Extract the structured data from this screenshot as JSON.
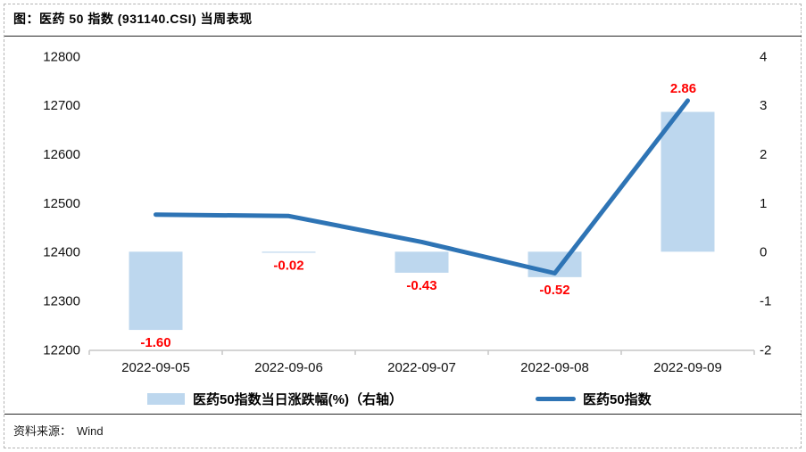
{
  "header": {
    "title": "图：医药 50 指数  (931140.CSI)  当周表现"
  },
  "legend": [
    {
      "type": "bar",
      "label": "医药50指数当日涨跌幅(%)（右轴）"
    },
    {
      "type": "line",
      "label": "医药50指数"
    }
  ],
  "source": {
    "label": "资料来源：",
    "value": "Wind"
  },
  "colors": {
    "bar_fill": "#BDD7EE",
    "line_stroke": "#2E74B5",
    "data_label": "#FF0000",
    "axis_line": "#C6C6C6",
    "axis_text": "#111111",
    "divider": "#262626"
  },
  "chart_data": {
    "type": "combo-bar-line",
    "categories": [
      "2022-09-05",
      "2022-09-06",
      "2022-09-07",
      "2022-09-08",
      "2022-09-09"
    ],
    "series": [
      {
        "name": "医药50指数当日涨跌幅(%)（右轴）",
        "type": "bar",
        "axis": "right",
        "values": [
          -1.6,
          -0.02,
          -0.43,
          -0.52,
          2.86
        ],
        "labels": [
          "-1.60",
          "-0.02",
          "-0.43",
          "-0.52",
          "2.86"
        ]
      },
      {
        "name": "医药50指数",
        "type": "line",
        "axis": "left",
        "values": [
          12476,
          12473,
          12420,
          12356,
          12709
        ]
      }
    ],
    "left_axis": {
      "min": 12200,
      "max": 12800,
      "ticks": [
        12800,
        12700,
        12600,
        12500,
        12400,
        12300,
        12200
      ]
    },
    "right_axis": {
      "min": -2,
      "max": 4,
      "ticks": [
        4,
        3,
        2,
        1,
        0,
        -1,
        -2
      ]
    },
    "grid": "off",
    "legend_position": "bottom",
    "data_labels": "on"
  }
}
